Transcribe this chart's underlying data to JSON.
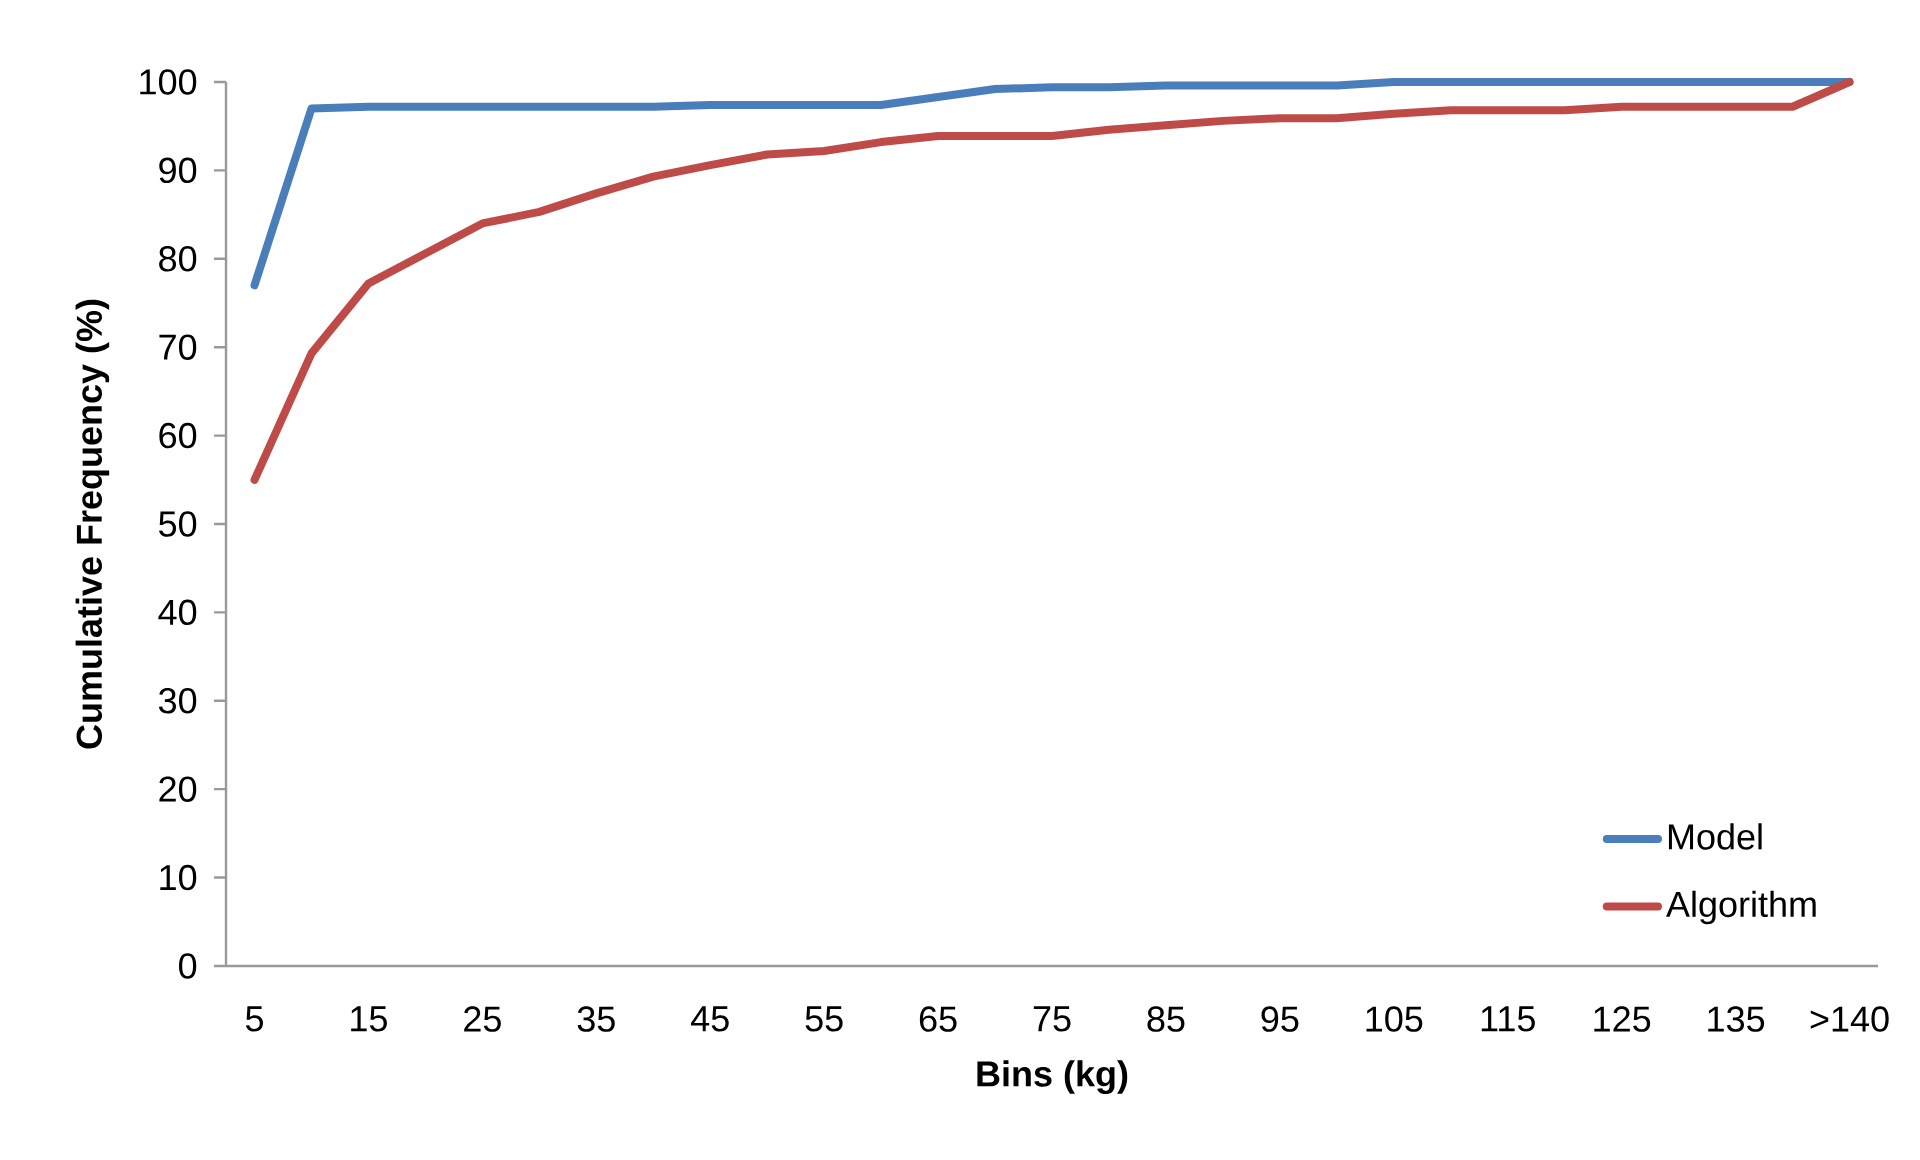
{
  "chart_data": {
    "type": "line",
    "xlabel": "Bins (kg)",
    "ylabel": "Cumulative Frequency (%)",
    "categories": [
      "5",
      null,
      "15",
      null,
      "25",
      null,
      "35",
      null,
      "45",
      null,
      "55",
      null,
      "65",
      null,
      "75",
      null,
      "85",
      null,
      "95",
      null,
      "105",
      null,
      "115",
      null,
      "125",
      null,
      "135",
      null,
      ">140"
    ],
    "series": [
      {
        "name": "Model",
        "color": "#4a7ebb",
        "values": [
          77,
          97,
          97.2,
          97.2,
          97.2,
          97.2,
          97.2,
          97.2,
          97.4,
          97.4,
          97.4,
          97.4,
          98.3,
          99.2,
          99.4,
          99.4,
          99.6,
          99.6,
          99.6,
          99.6,
          100,
          100,
          100,
          100,
          100,
          100,
          100,
          100,
          100
        ]
      },
      {
        "name": "Algorithm",
        "color": "#be4b48",
        "values": [
          55,
          69.3,
          77.2,
          80.6,
          84,
          85.3,
          87.4,
          89.3,
          90.6,
          91.8,
          92.2,
          93.2,
          93.9,
          93.9,
          93.9,
          94.6,
          95.1,
          95.6,
          95.9,
          95.9,
          96.4,
          96.8,
          96.8,
          96.8,
          97.2,
          97.2,
          97.2,
          97.2,
          100
        ]
      }
    ],
    "ylim": [
      0,
      100
    ],
    "yticks": [
      0,
      10,
      20,
      30,
      40,
      50,
      60,
      70,
      80,
      90,
      100
    ],
    "grid": false,
    "legend": "bottom right",
    "marker": "none",
    "line_style": "solid"
  }
}
